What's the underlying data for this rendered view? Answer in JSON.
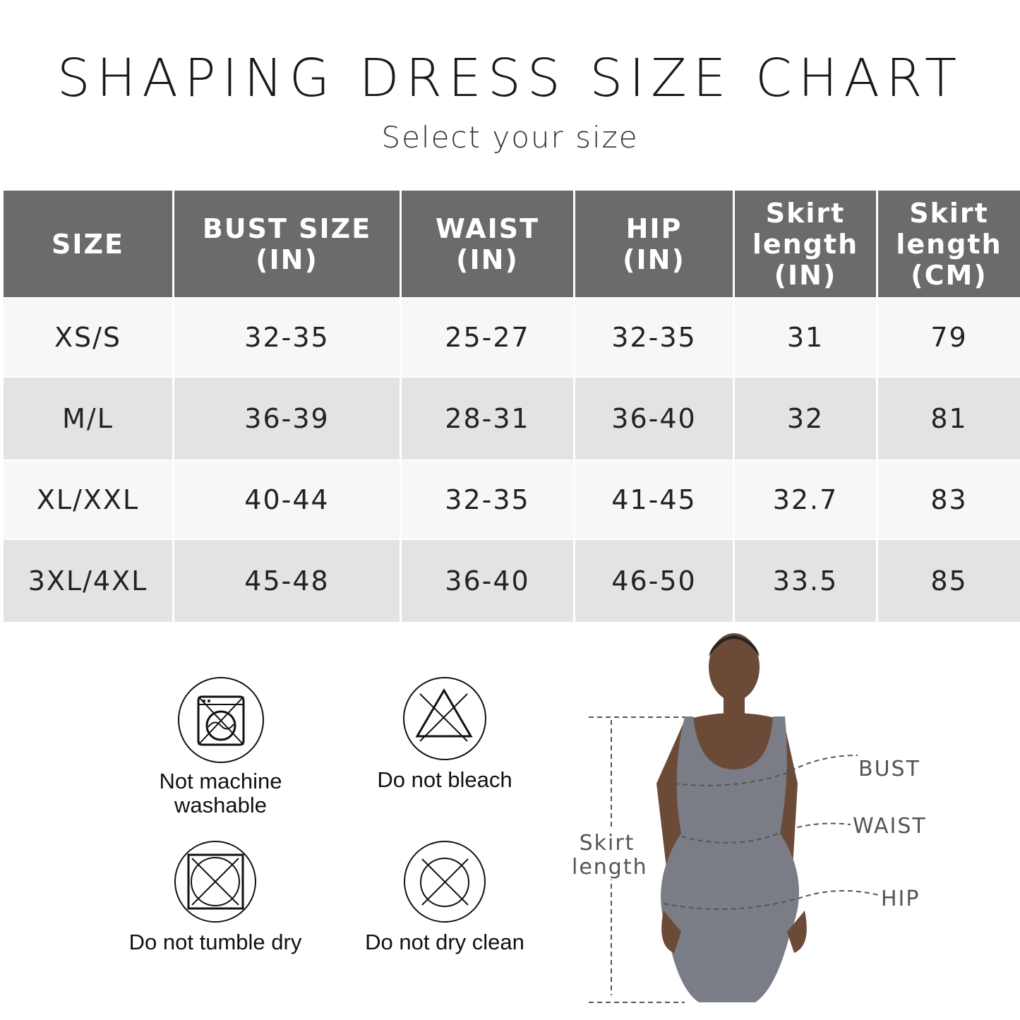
{
  "header": {
    "title": "SHAPING DRESS SIZE CHART",
    "subtitle": "Select your size"
  },
  "table": {
    "columns": [
      [
        "SIZE"
      ],
      [
        "BUST SIZE",
        "(IN)"
      ],
      [
        "WAIST",
        "(IN)"
      ],
      [
        "HIP",
        "(IN)"
      ],
      [
        "Skirt",
        "length",
        "(IN)"
      ],
      [
        "Skirt",
        "length",
        "(CM)"
      ]
    ],
    "rows": [
      [
        "XS/S",
        "32-35",
        "25-27",
        "32-35",
        "31",
        "79"
      ],
      [
        "M/L",
        "36-39",
        "28-31",
        "36-40",
        "32",
        "81"
      ],
      [
        "XL/XXL",
        "40-44",
        "32-35",
        "41-45",
        "32.7",
        "83"
      ],
      [
        "3XL/4XL",
        "45-48",
        "36-40",
        "46-50",
        "33.5",
        "85"
      ]
    ]
  },
  "care": [
    {
      "icon": "no-machine-wash-icon",
      "lines": [
        "Not machine",
        "washable"
      ]
    },
    {
      "icon": "no-bleach-icon",
      "lines": [
        "Do not bleach"
      ]
    },
    {
      "icon": "no-tumble-dry-icon",
      "lines": [
        "Do not tumble dry"
      ]
    },
    {
      "icon": "no-dry-clean-icon",
      "lines": [
        "Do not dry clean"
      ]
    }
  ],
  "figure": {
    "bust": "BUST",
    "waist": "WAIST",
    "hip": "HIP",
    "skirt_length": [
      "Skirt",
      "length"
    ]
  },
  "colors": {
    "header_bg": "#6b6b6b",
    "row_light": "#f7f7f7",
    "row_dark": "#e3e3e3",
    "dress": "#7a7d85"
  }
}
